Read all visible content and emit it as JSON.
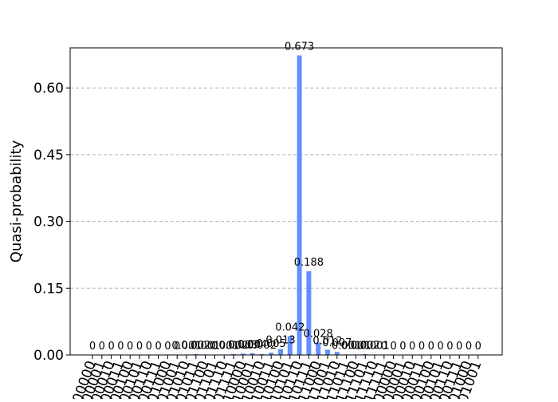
{
  "chart_data": {
    "type": "bar",
    "xlabel": "",
    "ylabel": "Quasi-probability",
    "ylim": [
      0,
      0.69
    ],
    "yticks": [
      "0.00",
      "0.15",
      "0.30",
      "0.45",
      "0.60"
    ],
    "grid": "y-dashed",
    "bar_color": "#648fff",
    "categories": [
      "00000",
      "00001",
      "00010",
      "00011",
      "00100",
      "00101",
      "00110",
      "00111",
      "01000",
      "01001",
      "01010",
      "01011",
      "01100",
      "01101",
      "01110",
      "01111",
      "10000",
      "10001",
      "10010",
      "10011",
      "10100",
      "10101",
      "10110",
      "10111",
      "11000",
      "11001",
      "11010",
      "11011",
      "11100",
      "11101",
      "11110",
      "11111",
      "00000",
      "00001",
      "00010",
      "00011",
      "00100",
      "00101",
      "00110",
      "00111",
      "01000",
      "01001"
    ],
    "values": [
      0,
      0,
      0,
      0,
      0,
      0,
      0,
      0,
      0,
      0,
      0.001,
      0.002,
      0.001,
      0,
      0.001,
      0.002,
      0.003,
      0.004,
      0.002,
      0.005,
      0.013,
      0.042,
      0.673,
      0.188,
      0.028,
      0.012,
      0.007,
      0.001,
      0.001,
      0.002,
      0.001,
      0,
      0,
      0,
      0,
      0,
      0,
      0,
      0,
      0,
      0,
      0
    ],
    "labels": [
      "0",
      "0",
      "0",
      "0",
      "0",
      "0",
      "0",
      "0",
      "0",
      "0",
      "0.001",
      "0.002",
      "0.001",
      "0",
      "0.001",
      "0.002",
      "0.003",
      "0.004",
      "0.002",
      "0.005",
      "0.013",
      "0.042",
      "0.673",
      "0.188",
      "0.028",
      "0.012",
      "0.007",
      "0.001",
      "0.001",
      "0.002",
      "0.001",
      "0",
      "0",
      "0",
      "0",
      "0",
      "0",
      "0",
      "0",
      "0",
      "0",
      "0"
    ]
  }
}
